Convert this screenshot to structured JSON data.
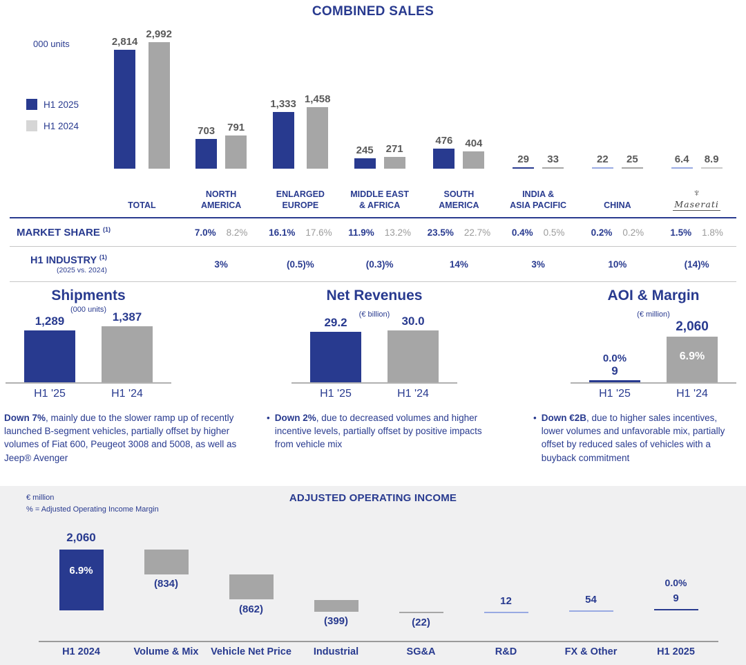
{
  "page": {
    "title": "COMBINED SALES"
  },
  "top_chart": {
    "units_label": "000 units",
    "legend": [
      {
        "label": "H1 2025",
        "color": "#283a8f"
      },
      {
        "label": "H1 2024",
        "color": "#d6d6d6"
      }
    ]
  },
  "regions_table": {
    "maserati": {
      "trident": "♆",
      "name": "Maserati"
    }
  },
  "mini": {
    "shipments": {
      "title": "Shipments",
      "units": "(000 units)",
      "v1": "1,289",
      "v2": "1,387",
      "c1": "H1 '25",
      "c2": "H1 '24"
    },
    "net_revenues": {
      "title": "Net Revenues",
      "units": "(€ billion)",
      "v1": "29.2",
      "v2": "30.0",
      "c1": "H1 '25",
      "c2": "H1 '24"
    },
    "aoi": {
      "title": "AOI & Margin",
      "units": "(€ million)",
      "m1": "0.0%",
      "v1": "9",
      "v2": "2,060",
      "m2": "6.9%",
      "c1": "H1 '25",
      "c2": "H1 '24"
    }
  },
  "commentary": {
    "shipments": {
      "bullet": "",
      "bold": "Down 7%",
      "rest": ", mainly due to the slower ramp up of recently launched B-segment vehicles, partially offset by higher volumes of Fiat 600, Peugeot 3008 and 5008, as well as Jeep® Avenger"
    },
    "net_revenues": {
      "bullet": "•",
      "bold": "Down 2%",
      "rest": ", due to decreased volumes and higher incentive levels, partially offset by positive impacts from vehicle mix"
    },
    "aoi": {
      "bullet": "•",
      "bold": "Down €2B",
      "rest": ", due to higher sales incentives, lower volumes and unfavorable mix, partially offset by reduced sales of vehicles with a buyback commitment"
    }
  },
  "waterfall_header": {
    "note1": "€ million",
    "note2": "% = Adjusted Operating Income Margin",
    "title": "ADJUSTED OPERATING INCOME"
  },
  "chart_data": [
    {
      "id": "combined_sales",
      "type": "bar",
      "title": "COMBINED SALES",
      "ylabel": "000 units",
      "legend_position": "left",
      "grid": false,
      "categories": [
        "Total",
        "North America",
        "Enlarged Europe",
        "Middle East & Africa",
        "South America",
        "India & Asia Pacific",
        "China",
        "Maserati"
      ],
      "series": [
        {
          "name": "H1 2025",
          "color": "#283a8f",
          "values": [
            2814,
            703,
            1333,
            245,
            476,
            29,
            22,
            6.4
          ],
          "labels": [
            "2,814",
            "703",
            "1,333",
            "245",
            "476",
            "29",
            "22",
            "6.4"
          ]
        },
        {
          "name": "H1 2024",
          "color": "#a6a6a6",
          "values": [
            2992,
            791,
            1458,
            271,
            404,
            33,
            25,
            8.9
          ],
          "labels": [
            "2,992",
            "791",
            "1,458",
            "271",
            "404",
            "33",
            "25",
            "8.9"
          ]
        }
      ]
    },
    {
      "id": "market_share_and_industry",
      "type": "table",
      "headers": [
        [
          "TOTAL"
        ],
        [
          "NORTH",
          "AMERICA"
        ],
        [
          "ENLARGED",
          "EUROPE"
        ],
        [
          "MIDDLE EAST",
          "& AFRICA"
        ],
        [
          "SOUTH",
          "AMERICA"
        ],
        [
          "INDIA &",
          "ASIA PACIFIC"
        ],
        [
          "CHINA"
        ],
        [
          "Maserati"
        ]
      ],
      "market_share": {
        "label": "MARKET SHARE",
        "sup": "(1)",
        "h1_2025": [
          "",
          "7.0%",
          "16.1%",
          "11.9%",
          "23.5%",
          "0.4%",
          "0.2%",
          "1.5%"
        ],
        "h1_2024": [
          "",
          "8.2%",
          "17.6%",
          "13.2%",
          "22.7%",
          "0.5%",
          "0.2%",
          "1.8%"
        ]
      },
      "h1_industry": {
        "label": "H1 INDUSTRY",
        "sup": "(1)",
        "sublabel": "(2025 vs. 2024)",
        "values": [
          "",
          "3%",
          "(0.5)%",
          "(0.3)%",
          "14%",
          "3%",
          "10%",
          "(14)%"
        ]
      }
    },
    {
      "id": "shipments",
      "type": "bar",
      "title": "Shipments",
      "ylabel": "000 units",
      "categories": [
        "H1 '25",
        "H1 '24"
      ],
      "values": [
        1289,
        1387
      ],
      "labels": [
        "1,289",
        "1,387"
      ],
      "colors": [
        "#283a8f",
        "#a6a6a6"
      ]
    },
    {
      "id": "net_revenues",
      "type": "bar",
      "title": "Net Revenues",
      "ylabel": "€ billion",
      "categories": [
        "H1 '25",
        "H1 '24"
      ],
      "values": [
        29.2,
        30.0
      ],
      "labels": [
        "29.2",
        "30.0"
      ],
      "colors": [
        "#283a8f",
        "#a6a6a6"
      ]
    },
    {
      "id": "aoi_margin",
      "type": "bar",
      "title": "AOI & Margin",
      "ylabel": "€ million",
      "categories": [
        "H1 '25",
        "H1 '24"
      ],
      "values": [
        9,
        2060
      ],
      "labels": [
        "9",
        "2,060"
      ],
      "margins": [
        "0.0%",
        "6.9%"
      ],
      "colors": [
        "#283a8f",
        "#a6a6a6"
      ]
    },
    {
      "id": "adjusted_operating_income",
      "type": "waterfall",
      "title": "ADJUSTED OPERATING INCOME",
      "ylabel": "€ million",
      "categories": [
        "H1 2024",
        "Volume & Mix",
        "Vehicle Net Price",
        "Industrial",
        "SG&A",
        "R&D",
        "FX & Other",
        "H1 2025"
      ],
      "values": [
        2060,
        -834,
        -862,
        -399,
        -22,
        12,
        54,
        9
      ],
      "labels": [
        "2,060",
        "(834)",
        "(862)",
        "(399)",
        "(22)",
        "12",
        "54",
        "9"
      ],
      "kinds": [
        "total",
        "delta",
        "delta",
        "delta",
        "delta",
        "delta",
        "delta",
        "total"
      ],
      "margin_start": "6.9%",
      "margin_end": "0.0%"
    }
  ]
}
